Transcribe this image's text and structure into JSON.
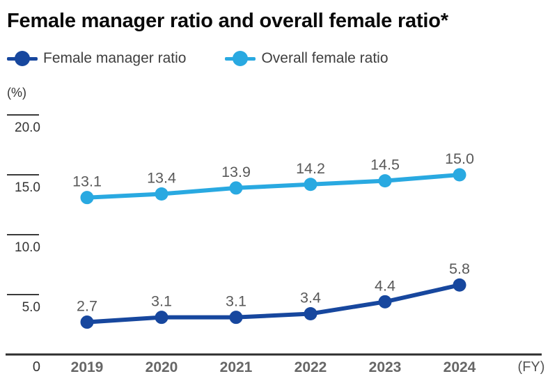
{
  "title": "Female manager ratio and overall female ratio*",
  "legend": [
    {
      "label": "Female manager ratio",
      "color": "#17479e"
    },
    {
      "label": "Overall female ratio",
      "color": "#29a9e1"
    }
  ],
  "axis": {
    "unit_label": "(%)",
    "origin_label": "0",
    "fy_label": "(FY)"
  },
  "colors": {
    "dark_blue": "#17479e",
    "light_blue": "#29a9e1",
    "axis_line": "#2e2e2e",
    "tick_line": "#3a3a3a",
    "tick_text": "#333333",
    "data_label": "#595959",
    "year_label": "#666666",
    "fy_label": "#555555"
  },
  "chart_data": {
    "type": "line",
    "categories": [
      "2019",
      "2020",
      "2021",
      "2022",
      "2023",
      "2024"
    ],
    "series": [
      {
        "name": "Female manager ratio",
        "color": "#17479e",
        "values": [
          2.7,
          3.1,
          3.1,
          3.4,
          4.4,
          5.8
        ],
        "labels": [
          "2.7",
          "3.1",
          "3.1",
          "3.4",
          "4.4",
          "5.8"
        ]
      },
      {
        "name": "Overall female ratio",
        "color": "#29a9e1",
        "values": [
          13.1,
          13.4,
          13.9,
          14.2,
          14.5,
          15.0
        ],
        "labels": [
          "13.1",
          "13.4",
          "13.9",
          "14.2",
          "14.5",
          "15.0"
        ]
      }
    ],
    "title": "Female manager ratio and overall female ratio*",
    "xlabel": "(FY)",
    "ylabel": "(%)",
    "yticks": [
      5.0,
      10.0,
      15.0,
      20.0
    ],
    "ytick_labels": [
      "5.0",
      "10.0",
      "15.0",
      "20.0"
    ],
    "ylim": [
      0,
      20
    ],
    "grid": false,
    "legend_position": "top-left"
  }
}
